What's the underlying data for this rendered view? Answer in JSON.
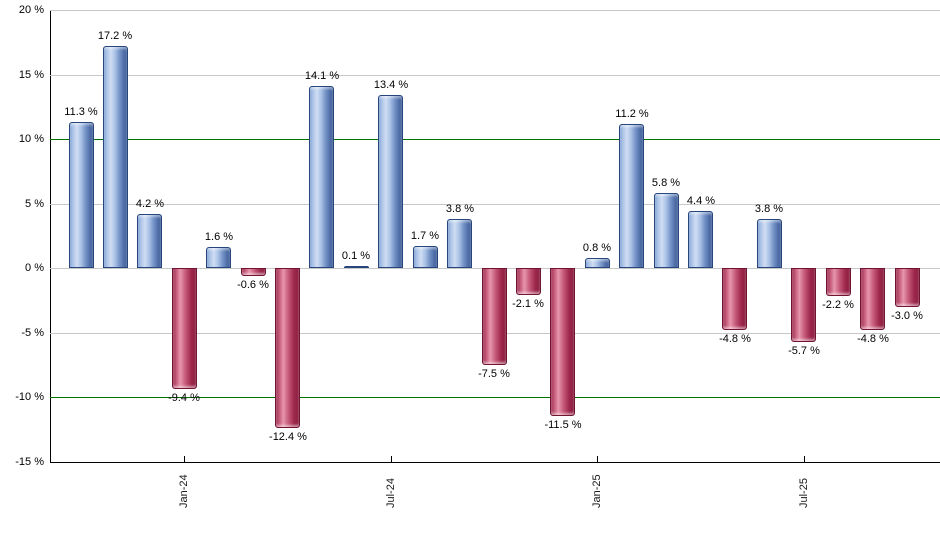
{
  "chart_data": {
    "type": "bar",
    "title": "",
    "values": [
      11.3,
      17.2,
      4.2,
      -9.4,
      1.6,
      -0.6,
      -12.4,
      14.1,
      0.1,
      13.4,
      1.7,
      3.8,
      -7.5,
      -2.1,
      -11.5,
      0.8,
      11.2,
      5.8,
      4.4,
      -4.8,
      3.8,
      -5.7,
      -2.2,
      -4.8,
      -3.0
    ],
    "bar_labels": [
      "11.3 %",
      "17.2 %",
      "4.2 %",
      "-9.4 %",
      "1.6 %",
      "-0.6 %",
      "-12.4 %",
      "14.1 %",
      "0.1 %",
      "13.4 %",
      "1.7 %",
      "3.8 %",
      "-7.5 %",
      "-2.1 %",
      "-11.5 %",
      "0.8 %",
      "11.2 %",
      "5.8 %",
      "4.4 %",
      "-4.8 %",
      "3.8 %",
      "-5.7 %",
      "-2.2 %",
      "-4.8 %",
      "-3.0 %"
    ],
    "x_ticks": [
      {
        "index": 3,
        "label": "Jan-24"
      },
      {
        "index": 9,
        "label": "Jul-24"
      },
      {
        "index": 15,
        "label": "Jan-25"
      },
      {
        "index": 21,
        "label": "Jul-25"
      }
    ],
    "y_ticks": [
      {
        "value": 20,
        "label": "20 %"
      },
      {
        "value": 15,
        "label": "15 %"
      },
      {
        "value": 10,
        "label": "10 %"
      },
      {
        "value": 5,
        "label": "5 %"
      },
      {
        "value": 0,
        "label": "0 %"
      },
      {
        "value": -5,
        "label": "-5 %"
      },
      {
        "value": -10,
        "label": "-10 %"
      },
      {
        "value": -15,
        "label": "-15 %"
      }
    ],
    "ylim": [
      -15,
      20
    ],
    "grid": true,
    "legend": false,
    "green_gridlines": [
      10,
      -10
    ],
    "colors": {
      "positive": "#aac2e6",
      "negative": "#c45878",
      "green_line": "#007200",
      "gridline": "#c8c8c8",
      "axis": "#000000",
      "label_text": "#000000"
    }
  }
}
